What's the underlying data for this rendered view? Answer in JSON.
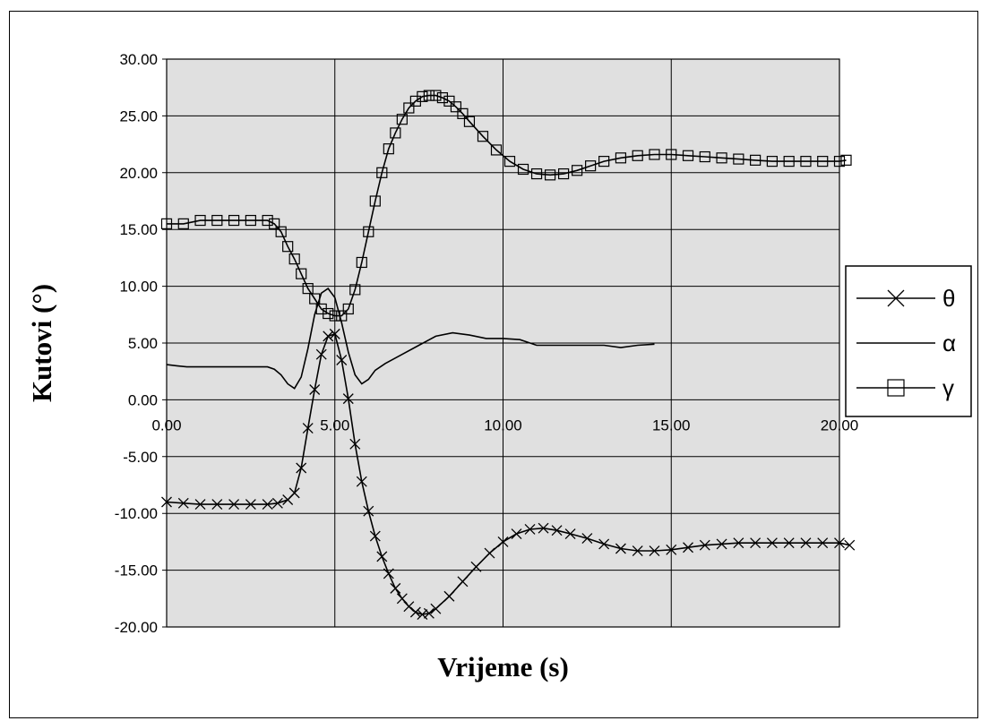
{
  "chart_data": {
    "type": "line",
    "title": "",
    "xlabel": "Vrijeme (s)",
    "ylabel": "Kutovi (°)",
    "xlim": [
      0,
      20
    ],
    "ylim": [
      -20,
      30
    ],
    "grid": true,
    "legend_position": "right",
    "x_tick_labels": [
      "0.00",
      "5.00",
      "10.00",
      "15.00",
      "20.00"
    ],
    "y_tick_labels": [
      "30.00",
      "25.00",
      "20.00",
      "15.00",
      "10.00",
      "5.00",
      "0.00",
      "-5.00",
      "-10.00",
      "-15.00",
      "-20.00"
    ],
    "colors": {
      "plot_background": "#e0e0e0",
      "line": "#000000",
      "grid": "#000000"
    },
    "series": [
      {
        "name": "θ",
        "marker": "x",
        "x": [
          0.0,
          0.5,
          1.0,
          1.5,
          2.0,
          2.5,
          3.0,
          3.3,
          3.6,
          3.8,
          4.0,
          4.2,
          4.4,
          4.6,
          4.8,
          5.0,
          5.2,
          5.4,
          5.6,
          5.8,
          6.0,
          6.2,
          6.4,
          6.6,
          6.8,
          7.0,
          7.2,
          7.4,
          7.6,
          7.8,
          8.0,
          8.4,
          8.8,
          9.2,
          9.6,
          10.0,
          10.4,
          10.8,
          11.2,
          11.6,
          12.0,
          12.5,
          13.0,
          13.5,
          14.0,
          14.5,
          15.0,
          15.5,
          16.0,
          16.5,
          17.0,
          17.5,
          18.0,
          18.5,
          19.0,
          19.5,
          20.0,
          20.3
        ],
        "values": [
          -9.0,
          -9.1,
          -9.2,
          -9.2,
          -9.2,
          -9.2,
          -9.2,
          -9.1,
          -8.8,
          -8.2,
          -6.0,
          -2.5,
          0.9,
          4.0,
          5.6,
          5.8,
          3.5,
          0.1,
          -3.9,
          -7.2,
          -9.8,
          -12.0,
          -13.8,
          -15.3,
          -16.6,
          -17.5,
          -18.2,
          -18.7,
          -18.9,
          -18.8,
          -18.4,
          -17.3,
          -16.0,
          -14.7,
          -13.5,
          -12.5,
          -11.8,
          -11.4,
          -11.3,
          -11.5,
          -11.8,
          -12.2,
          -12.7,
          -13.1,
          -13.3,
          -13.3,
          -13.2,
          -13.0,
          -12.8,
          -12.7,
          -12.6,
          -12.6,
          -12.6,
          -12.6,
          -12.6,
          -12.6,
          -12.6,
          -12.8
        ]
      },
      {
        "name": "α",
        "marker": "none",
        "x": [
          0.0,
          0.3,
          0.6,
          1.0,
          1.5,
          2.0,
          2.5,
          3.0,
          3.2,
          3.4,
          3.6,
          3.8,
          4.0,
          4.2,
          4.4,
          4.6,
          4.8,
          5.0,
          5.2,
          5.4,
          5.6,
          5.8,
          6.0,
          6.2,
          6.5,
          7.0,
          7.5,
          8.0,
          8.5,
          9.0,
          9.5,
          10.0,
          10.5,
          11.0,
          11.5,
          12.0,
          12.5,
          13.0,
          13.5,
          14.0,
          14.5
        ],
        "values": [
          3.1,
          3.0,
          2.9,
          2.9,
          2.9,
          2.9,
          2.9,
          2.9,
          2.7,
          2.2,
          1.4,
          1.0,
          2.0,
          4.5,
          7.5,
          9.4,
          9.8,
          9.0,
          6.8,
          4.2,
          2.2,
          1.4,
          1.8,
          2.6,
          3.2,
          4.0,
          4.8,
          5.6,
          5.9,
          5.7,
          5.4,
          5.4,
          5.3,
          4.8,
          4.8,
          4.8,
          4.8,
          4.8,
          4.6,
          4.8,
          4.9
        ]
      },
      {
        "name": "γ",
        "marker": "square",
        "x": [
          0.0,
          0.5,
          1.0,
          1.5,
          2.0,
          2.5,
          3.0,
          3.2,
          3.4,
          3.6,
          3.8,
          4.0,
          4.2,
          4.4,
          4.6,
          4.8,
          5.0,
          5.2,
          5.4,
          5.6,
          5.8,
          6.0,
          6.2,
          6.4,
          6.6,
          6.8,
          7.0,
          7.2,
          7.4,
          7.6,
          7.8,
          8.0,
          8.2,
          8.4,
          8.6,
          8.8,
          9.0,
          9.4,
          9.8,
          10.2,
          10.6,
          11.0,
          11.4,
          11.8,
          12.2,
          12.6,
          13.0,
          13.5,
          14.0,
          14.5,
          15.0,
          15.5,
          16.0,
          16.5,
          17.0,
          17.5,
          18.0,
          18.5,
          19.0,
          19.5,
          20.0,
          20.2
        ],
        "values": [
          15.5,
          15.5,
          15.8,
          15.8,
          15.8,
          15.8,
          15.8,
          15.5,
          14.8,
          13.5,
          12.4,
          11.1,
          9.8,
          8.9,
          8.0,
          7.6,
          7.4,
          7.4,
          8.0,
          9.7,
          12.1,
          14.8,
          17.5,
          20.0,
          22.1,
          23.5,
          24.7,
          25.7,
          26.3,
          26.7,
          26.8,
          26.8,
          26.6,
          26.3,
          25.8,
          25.2,
          24.5,
          23.2,
          22.0,
          21.0,
          20.3,
          19.9,
          19.8,
          19.9,
          20.2,
          20.6,
          21.0,
          21.3,
          21.5,
          21.6,
          21.6,
          21.5,
          21.4,
          21.3,
          21.2,
          21.1,
          21.0,
          21.0,
          21.0,
          21.0,
          21.0,
          21.1
        ]
      }
    ]
  }
}
